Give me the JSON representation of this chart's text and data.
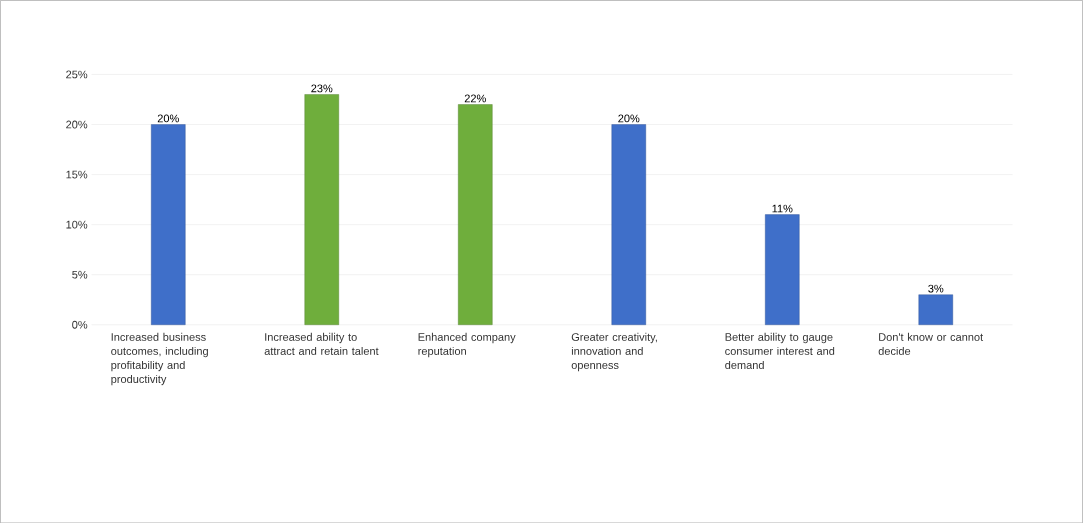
{
  "chart_data": {
    "type": "bar",
    "categories": [
      "Increased business outcomes, including profitability and productivity",
      "Increased ability to attract and retain talent",
      "Enhanced company reputation",
      "Greater creativity, innovation and openness",
      "Better ability to gauge consumer interest and demand",
      "Don't know or cannot decide"
    ],
    "values": [
      20,
      23,
      22,
      20,
      11,
      3
    ],
    "colors": [
      "#3f6fc9",
      "#6fae3c",
      "#6fae3c",
      "#3f6fc9",
      "#3f6fc9",
      "#3f6fc9"
    ],
    "value_labels": [
      "20%",
      "23%",
      "22%",
      "20%",
      "11%",
      "3%"
    ],
    "ylim": [
      0,
      25
    ],
    "yticks": [
      {
        "value": 0,
        "label": "0%"
      },
      {
        "value": 5,
        "label": "5%"
      },
      {
        "value": 10,
        "label": "10%"
      },
      {
        "value": 15,
        "label": "15%"
      },
      {
        "value": 20,
        "label": "20%"
      },
      {
        "value": 25,
        "label": "25%"
      }
    ],
    "grid": "y"
  }
}
